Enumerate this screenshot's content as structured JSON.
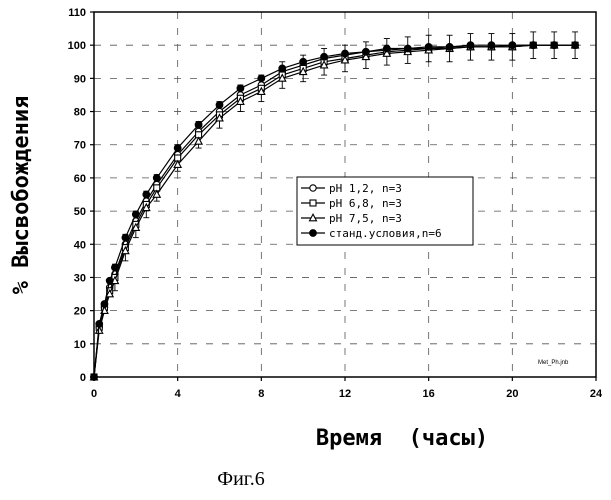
{
  "chart_data": {
    "type": "line",
    "xlabel": "Время  (часы)",
    "ylabel": "% Высвобождения",
    "caption": "Фиг.6",
    "watermark": "Met_Ph.jnb",
    "xlim": [
      0,
      24
    ],
    "ylim": [
      0,
      110
    ],
    "xticks": [
      "0",
      "4",
      "8",
      "12",
      "16",
      "20",
      "24"
    ],
    "yticks": [
      "0",
      "10",
      "20",
      "30",
      "40",
      "50",
      "60",
      "70",
      "80",
      "90",
      "100",
      "110"
    ],
    "grid": true,
    "legend_position": "center-right",
    "series": [
      {
        "name": "pH 1,2, n=3",
        "marker": "open-circle",
        "x": [
          0,
          0.25,
          0.5,
          0.75,
          1,
          1.5,
          2,
          2.5,
          3,
          4,
          5,
          6,
          7,
          8,
          9,
          10,
          11,
          12,
          13,
          14,
          15,
          16,
          17,
          18,
          19,
          20,
          21,
          22,
          23
        ],
        "y": [
          0,
          15,
          21,
          27,
          31,
          40,
          47,
          53,
          58,
          67,
          74,
          80,
          85,
          88,
          92,
          94,
          96,
          97,
          98,
          98.5,
          99,
          99,
          99.5,
          99.5,
          99.5,
          100,
          100,
          100,
          100
        ]
      },
      {
        "name": "pH 6,8,  n=3",
        "marker": "open-square",
        "x": [
          0,
          0.25,
          0.5,
          0.75,
          1,
          1.5,
          2,
          2.5,
          3,
          4,
          5,
          6,
          7,
          8,
          9,
          10,
          11,
          12,
          13,
          14,
          15,
          16,
          17,
          18,
          19,
          20,
          21,
          22,
          23
        ],
        "y": [
          0,
          15,
          21,
          26,
          30,
          39,
          46,
          52,
          57,
          66,
          73,
          79,
          84,
          87,
          91,
          93,
          95,
          96,
          97,
          98,
          98.5,
          99,
          99,
          99.5,
          99.5,
          99.5,
          100,
          100,
          100
        ]
      },
      {
        "name": "pH  7,5,  n=3",
        "marker": "open-triangle",
        "x": [
          0,
          0.25,
          0.5,
          0.75,
          1,
          1.5,
          2,
          2.5,
          3,
          4,
          5,
          6,
          7,
          8,
          9,
          10,
          11,
          12,
          13,
          14,
          15,
          16,
          17,
          18,
          19,
          20,
          21,
          22,
          23
        ],
        "y": [
          0,
          14,
          20,
          25,
          29,
          38,
          45,
          51,
          55,
          64,
          71,
          78,
          83,
          86,
          90,
          92,
          94,
          95.5,
          96.5,
          97.5,
          98,
          98.5,
          99,
          99.5,
          99.5,
          99.5,
          100,
          100,
          100
        ]
      },
      {
        "name": "станд.условия,n=6",
        "marker": "filled-circle",
        "x": [
          0,
          0.25,
          0.5,
          0.75,
          1,
          1.5,
          2,
          2.5,
          3,
          4,
          5,
          6,
          7,
          8,
          9,
          10,
          11,
          12,
          13,
          14,
          15,
          16,
          17,
          18,
          19,
          20,
          21,
          22,
          23
        ],
        "y": [
          0,
          16,
          22,
          29,
          33,
          42,
          49,
          55,
          60,
          69,
          76,
          82,
          87,
          90,
          93,
          95,
          96.5,
          97.5,
          98,
          99,
          99,
          99.5,
          99.5,
          100,
          100,
          100,
          100,
          100,
          100
        ]
      }
    ],
    "error_bar": 4
  }
}
